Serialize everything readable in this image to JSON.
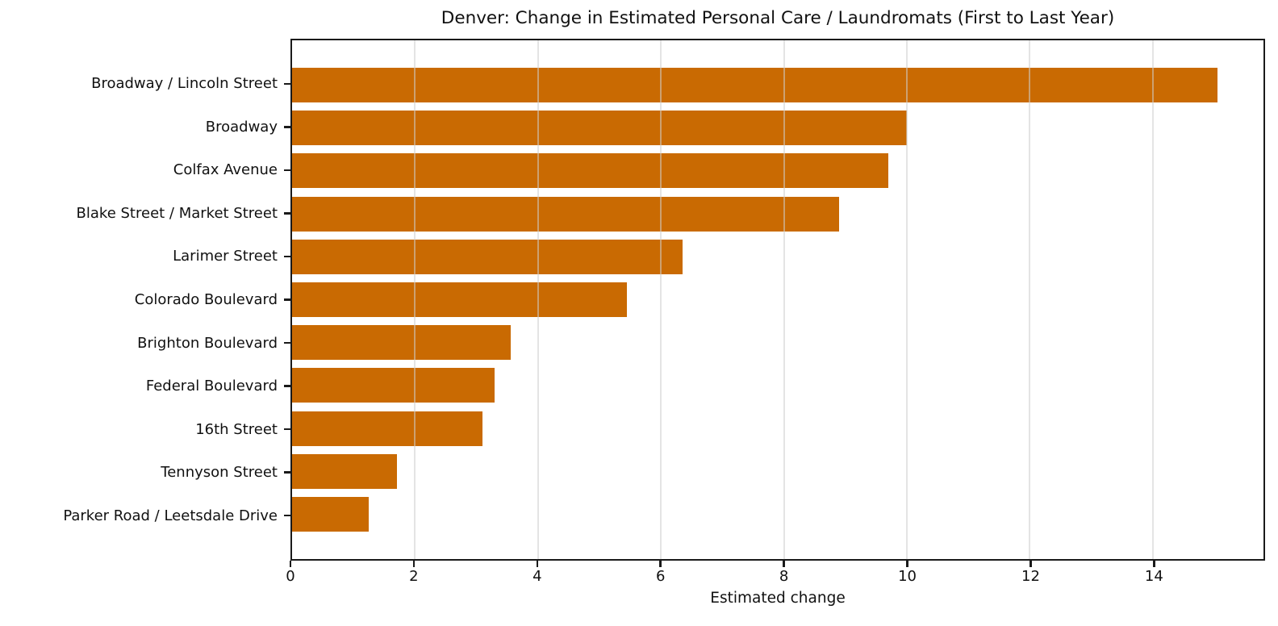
{
  "chart_data": {
    "type": "bar",
    "orientation": "horizontal",
    "title": "Denver: Change in Estimated Personal Care / Laundromats (First to Last Year)",
    "xlabel": "Estimated change",
    "ylabel": "",
    "categories": [
      "Broadway / Lincoln Street",
      "Broadway",
      "Colfax Avenue",
      "Blake Street / Market Street",
      "Larimer Street",
      "Colorado Boulevard",
      "Brighton Boulevard",
      "Federal Boulevard",
      "16th Street",
      "Tennyson Street",
      "Parker Road / Leetsdale Drive"
    ],
    "values": [
      15.05,
      10.0,
      9.7,
      8.9,
      6.35,
      5.45,
      3.55,
      3.3,
      3.1,
      1.7,
      1.25
    ],
    "xlim": [
      0,
      15.8
    ],
    "xticks": [
      0,
      2,
      4,
      6,
      8,
      10,
      12,
      14
    ],
    "grid": true,
    "grid_axis": "x",
    "legend": "none",
    "bar_color": "#C96A02",
    "spine_color": "#1a1a1a",
    "grid_color": "#cdcdcd"
  }
}
